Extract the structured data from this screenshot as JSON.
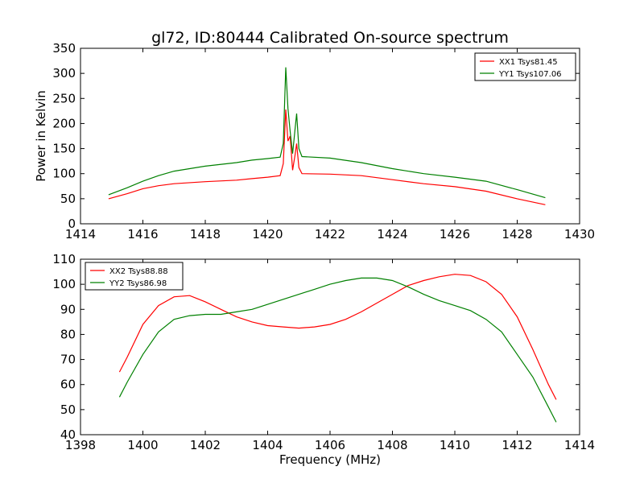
{
  "chart_data": [
    {
      "type": "line",
      "title": "gl72, ID:80444 Calibrated On-source spectrum",
      "xlabel": "",
      "ylabel": "Power in Kelvin",
      "xlim": [
        1414,
        1430
      ],
      "ylim": [
        0,
        350
      ],
      "x_ticks": [
        "1414",
        "1416",
        "1418",
        "1420",
        "1422",
        "1424",
        "1426",
        "1428",
        "1430"
      ],
      "y_ticks": [
        "0",
        "50",
        "100",
        "150",
        "200",
        "250",
        "300",
        "350"
      ],
      "grid": false,
      "legend_position": "top-right",
      "series": [
        {
          "name": "XX1 Tsys81.45",
          "color": "#ff0000",
          "points": [
            [
              1414.9,
              50
            ],
            [
              1415.5,
              60
            ],
            [
              1416,
              70
            ],
            [
              1416.5,
              76
            ],
            [
              1417,
              80
            ],
            [
              1418,
              84
            ],
            [
              1419,
              87
            ],
            [
              1419.5,
              90
            ],
            [
              1420,
              93
            ],
            [
              1420.4,
              96
            ],
            [
              1420.5,
              120
            ],
            [
              1420.58,
              228
            ],
            [
              1420.65,
              165
            ],
            [
              1420.72,
              175
            ],
            [
              1420.8,
              107
            ],
            [
              1420.88,
              138
            ],
            [
              1420.93,
              160
            ],
            [
              1421,
              112
            ],
            [
              1421.1,
              100
            ],
            [
              1422,
              99
            ],
            [
              1423,
              96
            ],
            [
              1424,
              88
            ],
            [
              1425,
              80
            ],
            [
              1426,
              74
            ],
            [
              1427,
              65
            ],
            [
              1428,
              50
            ],
            [
              1428.9,
              38
            ]
          ]
        },
        {
          "name": "YY1 Tsys107.06",
          "color": "#008000",
          "points": [
            [
              1414.9,
              58
            ],
            [
              1415.5,
              72
            ],
            [
              1416,
              85
            ],
            [
              1416.5,
              96
            ],
            [
              1417,
              105
            ],
            [
              1418,
              115
            ],
            [
              1419,
              122
            ],
            [
              1419.5,
              127
            ],
            [
              1420,
              130
            ],
            [
              1420.4,
              133
            ],
            [
              1420.5,
              160
            ],
            [
              1420.58,
              312
            ],
            [
              1420.65,
              230
            ],
            [
              1420.72,
              185
            ],
            [
              1420.8,
              140
            ],
            [
              1420.88,
              190
            ],
            [
              1420.93,
              220
            ],
            [
              1421,
              150
            ],
            [
              1421.1,
              134
            ],
            [
              1422,
              131
            ],
            [
              1423,
              122
            ],
            [
              1424,
              110
            ],
            [
              1425,
              100
            ],
            [
              1426,
              93
            ],
            [
              1427,
              85
            ],
            [
              1428,
              68
            ],
            [
              1428.9,
              52
            ]
          ]
        }
      ]
    },
    {
      "type": "line",
      "title": "",
      "xlabel": "Frequency (MHz)",
      "ylabel": "",
      "xlim": [
        1398,
        1414
      ],
      "ylim": [
        40,
        110
      ],
      "x_ticks": [
        "1398",
        "1400",
        "1402",
        "1404",
        "1406",
        "1408",
        "1410",
        "1412",
        "1414"
      ],
      "y_ticks": [
        "40",
        "50",
        "60",
        "70",
        "80",
        "90",
        "100",
        "110"
      ],
      "grid": false,
      "legend_position": "top-left",
      "series": [
        {
          "name": "XX2 Tsys88.88",
          "color": "#ff0000",
          "points": [
            [
              1399.25,
              65
            ],
            [
              1399.5,
              71
            ],
            [
              1400,
              84
            ],
            [
              1400.5,
              91.5
            ],
            [
              1401,
              95
            ],
            [
              1401.5,
              95.5
            ],
            [
              1402,
              93
            ],
            [
              1402.5,
              90
            ],
            [
              1403,
              87
            ],
            [
              1403.5,
              85
            ],
            [
              1404,
              83.5
            ],
            [
              1404.5,
              83
            ],
            [
              1405,
              82.5
            ],
            [
              1405.5,
              83
            ],
            [
              1406,
              84
            ],
            [
              1406.5,
              86
            ],
            [
              1407,
              89
            ],
            [
              1407.5,
              92.5
            ],
            [
              1408,
              96
            ],
            [
              1408.5,
              99.5
            ],
            [
              1409,
              101.5
            ],
            [
              1409.5,
              103
            ],
            [
              1410,
              104
            ],
            [
              1410.5,
              103.5
            ],
            [
              1411,
              101
            ],
            [
              1411.5,
              96
            ],
            [
              1412,
              87
            ],
            [
              1412.5,
              74
            ],
            [
              1413,
              60
            ],
            [
              1413.25,
              54
            ]
          ]
        },
        {
          "name": "YY2 Tsys86.98",
          "color": "#008000",
          "points": [
            [
              1399.25,
              55
            ],
            [
              1399.5,
              61
            ],
            [
              1400,
              72
            ],
            [
              1400.5,
              81
            ],
            [
              1401,
              86
            ],
            [
              1401.5,
              87.5
            ],
            [
              1402,
              88
            ],
            [
              1402.5,
              88
            ],
            [
              1403,
              89
            ],
            [
              1403.5,
              90
            ],
            [
              1404,
              92
            ],
            [
              1404.5,
              94
            ],
            [
              1405,
              96
            ],
            [
              1405.5,
              98
            ],
            [
              1406,
              100
            ],
            [
              1406.5,
              101.5
            ],
            [
              1407,
              102.5
            ],
            [
              1407.5,
              102.5
            ],
            [
              1408,
              101.5
            ],
            [
              1408.5,
              99
            ],
            [
              1409,
              96
            ],
            [
              1409.5,
              93.5
            ],
            [
              1410,
              91.5
            ],
            [
              1410.5,
              89.5
            ],
            [
              1411,
              86
            ],
            [
              1411.5,
              81
            ],
            [
              1412,
              72
            ],
            [
              1412.5,
              63
            ],
            [
              1413,
              51
            ],
            [
              1413.25,
              45
            ]
          ]
        }
      ]
    }
  ]
}
